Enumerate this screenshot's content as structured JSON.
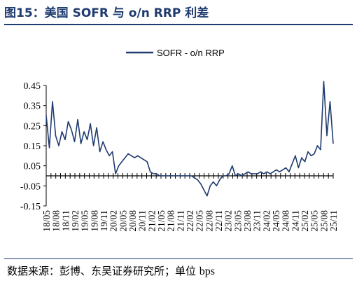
{
  "header": {
    "title": "图15：美国 SOFR 与 o/n RRP 利差"
  },
  "footer": {
    "source_label": "数据来源：彭博、东吴证券研究所；单位",
    "unit": "bps"
  },
  "chart_data": {
    "type": "line",
    "title": "",
    "xlabel": "",
    "ylabel": "",
    "ylim": [
      -0.15,
      0.45
    ],
    "yticks": [
      "0.45",
      "0.35",
      "0.25",
      "0.15",
      "0.05",
      "-0.05",
      "-0.15"
    ],
    "ytick_values": [
      0.45,
      0.35,
      0.25,
      0.15,
      0.05,
      -0.05,
      -0.15
    ],
    "xlim": [
      "2018-05",
      "2025-12"
    ],
    "xtick_labels": [
      "18/05",
      "18/08",
      "18/11",
      "19/02",
      "19/05",
      "19/08",
      "19/11",
      "20/02",
      "20/05",
      "20/08",
      "20/11",
      "21/02",
      "21/05",
      "21/08",
      "21/11",
      "22/02",
      "22/05",
      "22/08",
      "22/11",
      "23/02",
      "23/05",
      "23/08",
      "23/11",
      "24/02",
      "24/05",
      "24/08",
      "24/11",
      "25/02",
      "25/05",
      "25/08",
      "25/11"
    ],
    "legend": {
      "position": "top-right",
      "entries": [
        "SOFR - o/n RRP"
      ]
    },
    "grid": false,
    "series": [
      {
        "name": "SOFR - o/n RRP",
        "color": "#1f3b70",
        "points": [
          [
            "2018-05",
            0.3
          ],
          [
            "2018-06",
            0.14
          ],
          [
            "2018-07",
            0.37
          ],
          [
            "2018-08",
            0.2
          ],
          [
            "2018-09",
            0.15
          ],
          [
            "2018-10",
            0.22
          ],
          [
            "2018-11",
            0.18
          ],
          [
            "2018-12",
            0.27
          ],
          [
            "2019-01",
            0.23
          ],
          [
            "2019-02",
            0.17
          ],
          [
            "2019-03",
            0.28
          ],
          [
            "2019-04",
            0.16
          ],
          [
            "2019-05",
            0.22
          ],
          [
            "2019-06",
            0.18
          ],
          [
            "2019-07",
            0.26
          ],
          [
            "2019-08",
            0.15
          ],
          [
            "2019-09",
            0.24
          ],
          [
            "2019-10",
            0.12
          ],
          [
            "2019-11",
            0.17
          ],
          [
            "2019-12",
            0.13
          ],
          [
            "2020-01",
            0.1
          ],
          [
            "2020-02",
            0.12
          ],
          [
            "2020-03",
            0.01
          ],
          [
            "2020-04",
            0.05
          ],
          [
            "2020-05",
            0.07
          ],
          [
            "2020-06",
            0.09
          ],
          [
            "2020-07",
            0.11
          ],
          [
            "2020-08",
            0.1
          ],
          [
            "2020-09",
            0.09
          ],
          [
            "2020-10",
            0.1
          ],
          [
            "2020-11",
            0.09
          ],
          [
            "2020-12",
            0.08
          ],
          [
            "2021-01",
            0.07
          ],
          [
            "2021-02",
            0.02
          ],
          [
            "2021-03",
            0.01
          ],
          [
            "2021-04",
            0.01
          ],
          [
            "2021-05",
            0.0
          ],
          [
            "2021-06",
            0.0
          ],
          [
            "2021-07",
            0.0
          ],
          [
            "2021-08",
            0.0
          ],
          [
            "2021-09",
            0.0
          ],
          [
            "2021-10",
            0.0
          ],
          [
            "2021-11",
            0.0
          ],
          [
            "2021-12",
            0.0
          ],
          [
            "2022-01",
            0.0
          ],
          [
            "2022-02",
            0.0
          ],
          [
            "2022-03",
            0.0
          ],
          [
            "2022-04",
            -0.01
          ],
          [
            "2022-05",
            -0.02
          ],
          [
            "2022-06",
            -0.04
          ],
          [
            "2022-07",
            -0.07
          ],
          [
            "2022-08",
            -0.1
          ],
          [
            "2022-09",
            -0.05
          ],
          [
            "2022-10",
            -0.03
          ],
          [
            "2022-11",
            -0.05
          ],
          [
            "2022-12",
            -0.02
          ],
          [
            "2023-01",
            0.0
          ],
          [
            "2023-02",
            0.0
          ],
          [
            "2023-03",
            0.01
          ],
          [
            "2023-04",
            0.05
          ],
          [
            "2023-05",
            0.0
          ],
          [
            "2023-06",
            0.01
          ],
          [
            "2023-07",
            0.0
          ],
          [
            "2023-08",
            0.01
          ],
          [
            "2023-09",
            0.02
          ],
          [
            "2023-10",
            0.01
          ],
          [
            "2023-11",
            0.01
          ],
          [
            "2023-12",
            0.01
          ],
          [
            "2024-01",
            0.02
          ],
          [
            "2024-02",
            0.01
          ],
          [
            "2024-03",
            0.02
          ],
          [
            "2024-04",
            0.01
          ],
          [
            "2024-05",
            0.02
          ],
          [
            "2024-06",
            0.03
          ],
          [
            "2024-07",
            0.02
          ],
          [
            "2024-08",
            0.03
          ],
          [
            "2024-09",
            0.04
          ],
          [
            "2024-10",
            0.02
          ],
          [
            "2024-11",
            0.06
          ],
          [
            "2024-12",
            0.1
          ],
          [
            "2025-01",
            0.04
          ],
          [
            "2025-02",
            0.09
          ],
          [
            "2025-03",
            0.07
          ],
          [
            "2025-04",
            0.12
          ],
          [
            "2025-05",
            0.1
          ],
          [
            "2025-06",
            0.11
          ],
          [
            "2025-07",
            0.15
          ],
          [
            "2025-08",
            0.13
          ],
          [
            "2025-09",
            0.47
          ],
          [
            "2025-10",
            0.2
          ],
          [
            "2025-11",
            0.37
          ],
          [
            "2025-12",
            0.16
          ]
        ]
      }
    ]
  }
}
